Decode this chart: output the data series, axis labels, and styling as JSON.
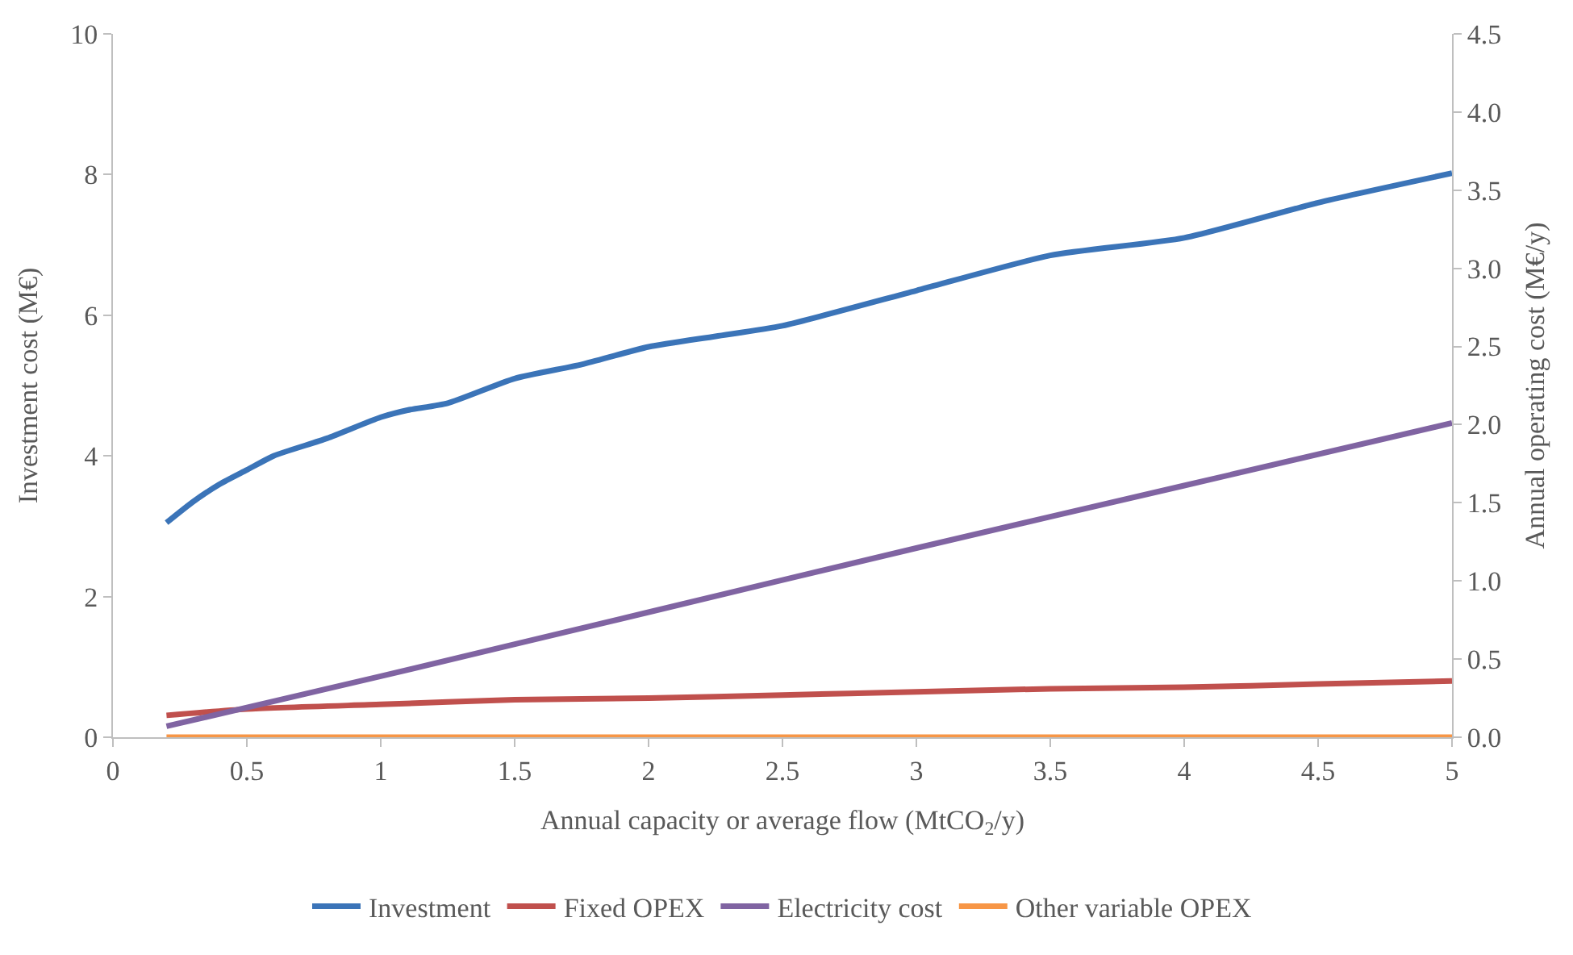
{
  "chart_data": {
    "type": "line",
    "xlabel": "Annual capacity or average flow (MtCO$_{2}$/y)",
    "ylabel": "Investment cost (M€)",
    "y2label": "Annual operating cost (M€/y)",
    "xlim": [
      0,
      5
    ],
    "xticks": [
      0,
      0.5,
      1,
      1.5,
      2,
      2.5,
      3,
      3.5,
      4,
      4.5,
      5
    ],
    "ylim": [
      0,
      10
    ],
    "yticks": [
      0,
      2,
      4,
      6,
      8,
      10
    ],
    "y2lim": [
      0,
      4.5
    ],
    "y2ticks": [
      {
        "value": 0,
        "label": "0.0"
      },
      {
        "value": 0.5,
        "label": "0.5"
      },
      {
        "value": 1,
        "label": "1.0"
      },
      {
        "value": 1.5,
        "label": "1.5"
      },
      {
        "value": 2,
        "label": "2.0"
      },
      {
        "value": 2.5,
        "label": "2.5"
      },
      {
        "value": 3,
        "label": "3.0"
      },
      {
        "value": 3.5,
        "label": "3.5"
      },
      {
        "value": 4,
        "label": "4.0"
      },
      {
        "value": 4.5,
        "label": "4.5"
      }
    ],
    "legend": "bottom",
    "marker": "none",
    "line_style": "solid",
    "series": [
      {
        "name": "Investment",
        "color": "#3b74b8",
        "x": [
          0.2,
          0.3,
          0.4,
          0.5,
          0.6,
          0.8,
          1.0,
          1.1,
          1.25,
          1.5,
          1.75,
          2.0,
          2.25,
          2.5,
          3.0,
          3.5,
          4.0,
          4.5,
          5.0
        ],
        "values": [
          3.05,
          3.35,
          3.6,
          3.8,
          4.0,
          4.25,
          4.55,
          4.65,
          4.75,
          5.1,
          5.3,
          5.55,
          5.7,
          5.85,
          6.35,
          6.85,
          7.1,
          7.6,
          8.02
        ]
      },
      {
        "name": "Fixed OPEX",
        "color": "#c0504d",
        "axis": "y2",
        "x": [
          0.2,
          0.5,
          1.0,
          1.5,
          2.0,
          2.5,
          3.0,
          3.5,
          4.0,
          4.5,
          5.0
        ],
        "values": [
          0.14,
          0.18,
          0.21,
          0.24,
          0.25,
          0.27,
          0.29,
          0.31,
          0.32,
          0.34,
          0.36
        ]
      },
      {
        "name": "Electricity cost",
        "color": "#8064a2",
        "axis": "y2",
        "x": [
          0.2,
          1,
          2,
          3,
          4,
          5
        ],
        "values": [
          0.07,
          0.39,
          0.8,
          1.21,
          1.61,
          2.01
        ]
      },
      {
        "name": "Other variable OPEX",
        "color": "#f79646",
        "axis": "y2",
        "x": [
          0.2,
          1,
          2,
          3,
          4,
          5
        ],
        "values": [
          0,
          0,
          0,
          0,
          0,
          0
        ]
      }
    ]
  }
}
